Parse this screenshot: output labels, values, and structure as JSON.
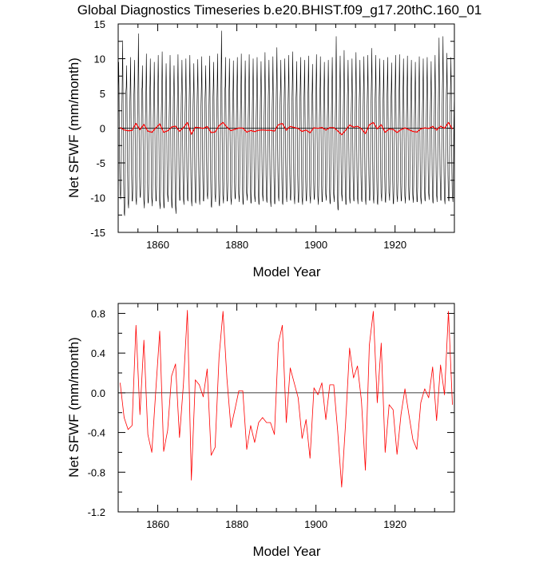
{
  "figure": {
    "title": "Global Diagnostics Timeseries b.e20.BHIST.f09_g17.20thC.160_01"
  },
  "colors": {
    "monthly_line": "#000000",
    "annual_line": "#ff0000",
    "zero_line": "#000000",
    "axis": "#000000"
  },
  "chart_data": [
    {
      "type": "line",
      "title": "Global Diagnostics Timeseries b.e20.BHIST.f09_g17.20thC.160_01",
      "xlabel": "Model Year",
      "ylabel": "Net SFWF (mm/month)",
      "xlim": [
        1850,
        1935
      ],
      "ylim": [
        -15,
        15
      ],
      "xticks": [
        1860,
        1880,
        1900,
        1920
      ],
      "yticks": [
        -15,
        -10,
        -5,
        0,
        5,
        10,
        15
      ],
      "ytick_labels": [
        "-15",
        "-10",
        "-5",
        "0",
        "5",
        "10",
        "15"
      ],
      "zero_line": true,
      "grid": false,
      "series": [
        {
          "name": "",
          "color": "#000000",
          "kind": "monthly",
          "start_year": 1850,
          "annual_peaks": [
            9.5,
            12.6,
            9.0,
            10.2,
            9.8,
            13.6,
            9.0,
            10.7,
            10.0,
            9.5,
            10.5,
            11.0,
            9.3,
            10.5,
            9.0,
            10.6,
            9.8,
            10.0,
            10.5,
            9.3,
            9.9,
            10.3,
            9.0,
            10.4,
            9.5,
            10.7,
            14.0,
            10.2,
            10.0,
            9.7,
            10.2,
            10.7,
            9.7,
            10.6,
            10.0,
            10.2,
            9.6,
            10.9,
            9.8,
            10.3,
            11.6,
            9.8,
            10.0,
            10.5,
            11.0,
            9.6,
            10.2,
            9.8,
            10.4,
            9.2,
            10.6,
            10.3,
            9.5,
            9.8,
            10.2,
            13.2,
            10.4,
            11.2,
            9.8,
            10.0,
            10.9,
            9.8,
            10.3,
            10.5,
            11.5,
            10.5,
            10.0,
            9.8,
            10.2,
            9.4,
            10.5,
            10.6,
            10.0,
            10.4,
            9.8,
            9.5,
            10.3,
            10.0,
            10.2,
            9.6,
            10.5,
            13.0,
            13.2,
            10.8,
            10.2
          ],
          "annual_troughs": [
            -10.2,
            -12.6,
            -11.5,
            -10.5,
            -11.0,
            -10.0,
            -11.5,
            -10.8,
            -11.2,
            -10.5,
            -11.6,
            -11.5,
            -10.6,
            -11.5,
            -12.3,
            -10.4,
            -11.0,
            -10.5,
            -11.2,
            -10.8,
            -11.0,
            -10.5,
            -10.2,
            -11.4,
            -10.6,
            -11.2,
            -10.8,
            -10.5,
            -11.0,
            -10.2,
            -10.6,
            -11.0,
            -10.4,
            -10.8,
            -10.6,
            -11.0,
            -10.5,
            -10.7,
            -11.3,
            -10.9,
            -10.5,
            -11.0,
            -10.6,
            -10.4,
            -10.9,
            -10.7,
            -11.0,
            -10.5,
            -10.8,
            -10.3,
            -11.0,
            -10.6,
            -10.4,
            -10.9,
            -10.6,
            -11.8,
            -10.5,
            -11.0,
            -10.8,
            -10.5,
            -10.9,
            -10.6,
            -11.0,
            -10.4,
            -10.8,
            -11.0,
            -10.5,
            -10.7,
            -10.4,
            -10.9,
            -10.6,
            -10.5,
            -10.8,
            -10.4,
            -10.7,
            -10.6,
            -10.9,
            -10.5,
            -10.3,
            -10.8,
            -10.6,
            -10.4,
            -10.9,
            -10.5,
            -10.6
          ]
        },
        {
          "name": "",
          "color": "#ff0000",
          "kind": "annual",
          "x": [
            1850.5,
            1851.5,
            1852.5,
            1853.5,
            1854.5,
            1855.5,
            1856.5,
            1857.5,
            1858.5,
            1859.5,
            1860.5,
            1861.5,
            1862.5,
            1863.5,
            1864.5,
            1865.5,
            1866.5,
            1867.5,
            1868.5,
            1869.5,
            1870.5,
            1871.5,
            1872.5,
            1873.5,
            1874.5,
            1875.5,
            1876.5,
            1877.5,
            1878.5,
            1879.5,
            1880.5,
            1881.5,
            1882.5,
            1883.5,
            1884.5,
            1885.5,
            1886.5,
            1887.5,
            1888.5,
            1889.5,
            1890.5,
            1891.5,
            1892.5,
            1893.5,
            1894.5,
            1895.5,
            1896.5,
            1897.5,
            1898.5,
            1899.5,
            1900.5,
            1901.5,
            1902.5,
            1903.5,
            1904.5,
            1905.5,
            1906.5,
            1907.5,
            1908.5,
            1909.5,
            1910.5,
            1911.5,
            1912.5,
            1913.5,
            1914.5,
            1915.5,
            1916.5,
            1917.5,
            1918.5,
            1919.5,
            1920.5,
            1921.5,
            1922.5,
            1923.5,
            1924.5,
            1925.5,
            1926.5,
            1927.5,
            1928.5,
            1929.5,
            1930.5,
            1931.5,
            1932.5,
            1933.5,
            1934.5
          ],
          "values": [
            0.1,
            -0.25,
            -0.37,
            -0.33,
            0.68,
            -0.22,
            0.53,
            -0.42,
            -0.6,
            0.02,
            0.62,
            -0.59,
            -0.38,
            0.17,
            0.29,
            -0.45,
            0.09,
            0.83,
            -0.88,
            0.13,
            0.08,
            -0.04,
            0.24,
            -0.63,
            -0.55,
            0.36,
            0.82,
            0.14,
            -0.35,
            -0.17,
            0.02,
            0.02,
            -0.57,
            -0.33,
            -0.5,
            -0.3,
            -0.25,
            -0.3,
            -0.3,
            -0.42,
            0.5,
            0.68,
            -0.3,
            0.25,
            0.1,
            -0.05,
            -0.46,
            -0.27,
            -0.66,
            0.05,
            -0.02,
            0.1,
            -0.27,
            0.08,
            0.08,
            -0.39,
            -0.95,
            -0.3,
            0.45,
            0.15,
            0.27,
            -0.08,
            -0.78,
            0.48,
            0.82,
            -0.1,
            0.5,
            -0.6,
            -0.12,
            -0.17,
            -0.62,
            -0.22,
            0.04,
            -0.22,
            -0.47,
            -0.57,
            -0.1,
            0.04,
            -0.05,
            0.26,
            -0.28,
            0.28,
            -0.02,
            0.82,
            -0.12
          ]
        }
      ]
    },
    {
      "type": "line",
      "title": "",
      "xlabel": "Model Year",
      "ylabel": "Net SFWF (mm/month)",
      "xlim": [
        1850,
        1935
      ],
      "ylim": [
        -1.2,
        0.9
      ],
      "xticks": [
        1860,
        1880,
        1900,
        1920
      ],
      "yticks": [
        -1.2,
        -0.8,
        -0.4,
        0.0,
        0.4,
        0.8
      ],
      "ytick_labels": [
        "-1.2",
        "-0.8",
        "-0.4",
        "0.0",
        "0.4",
        "0.8"
      ],
      "zero_line": true,
      "grid": false,
      "series": [
        {
          "name": "",
          "color": "#ff0000",
          "kind": "annual",
          "x": [
            1850.5,
            1851.5,
            1852.5,
            1853.5,
            1854.5,
            1855.5,
            1856.5,
            1857.5,
            1858.5,
            1859.5,
            1860.5,
            1861.5,
            1862.5,
            1863.5,
            1864.5,
            1865.5,
            1866.5,
            1867.5,
            1868.5,
            1869.5,
            1870.5,
            1871.5,
            1872.5,
            1873.5,
            1874.5,
            1875.5,
            1876.5,
            1877.5,
            1878.5,
            1879.5,
            1880.5,
            1881.5,
            1882.5,
            1883.5,
            1884.5,
            1885.5,
            1886.5,
            1887.5,
            1888.5,
            1889.5,
            1890.5,
            1891.5,
            1892.5,
            1893.5,
            1894.5,
            1895.5,
            1896.5,
            1897.5,
            1898.5,
            1899.5,
            1900.5,
            1901.5,
            1902.5,
            1903.5,
            1904.5,
            1905.5,
            1906.5,
            1907.5,
            1908.5,
            1909.5,
            1910.5,
            1911.5,
            1912.5,
            1913.5,
            1914.5,
            1915.5,
            1916.5,
            1917.5,
            1918.5,
            1919.5,
            1920.5,
            1921.5,
            1922.5,
            1923.5,
            1924.5,
            1925.5,
            1926.5,
            1927.5,
            1928.5,
            1929.5,
            1930.5,
            1931.5,
            1932.5,
            1933.5,
            1934.5
          ],
          "values": [
            0.1,
            -0.25,
            -0.37,
            -0.33,
            0.68,
            -0.22,
            0.53,
            -0.42,
            -0.6,
            0.02,
            0.62,
            -0.59,
            -0.38,
            0.17,
            0.29,
            -0.45,
            0.09,
            0.83,
            -0.88,
            0.13,
            0.08,
            -0.04,
            0.24,
            -0.63,
            -0.55,
            0.36,
            0.82,
            0.14,
            -0.35,
            -0.17,
            0.02,
            0.02,
            -0.57,
            -0.33,
            -0.5,
            -0.3,
            -0.25,
            -0.3,
            -0.3,
            -0.42,
            0.5,
            0.68,
            -0.3,
            0.25,
            0.1,
            -0.05,
            -0.46,
            -0.27,
            -0.66,
            0.05,
            -0.02,
            0.1,
            -0.27,
            0.08,
            0.08,
            -0.39,
            -0.95,
            -0.3,
            0.45,
            0.15,
            0.27,
            -0.08,
            -0.78,
            0.48,
            0.82,
            -0.1,
            0.5,
            -0.6,
            -0.12,
            -0.17,
            -0.62,
            -0.22,
            0.04,
            -0.22,
            -0.47,
            -0.57,
            -0.1,
            0.04,
            -0.05,
            0.26,
            -0.28,
            0.28,
            -0.02,
            0.82,
            -0.12
          ]
        }
      ]
    }
  ]
}
